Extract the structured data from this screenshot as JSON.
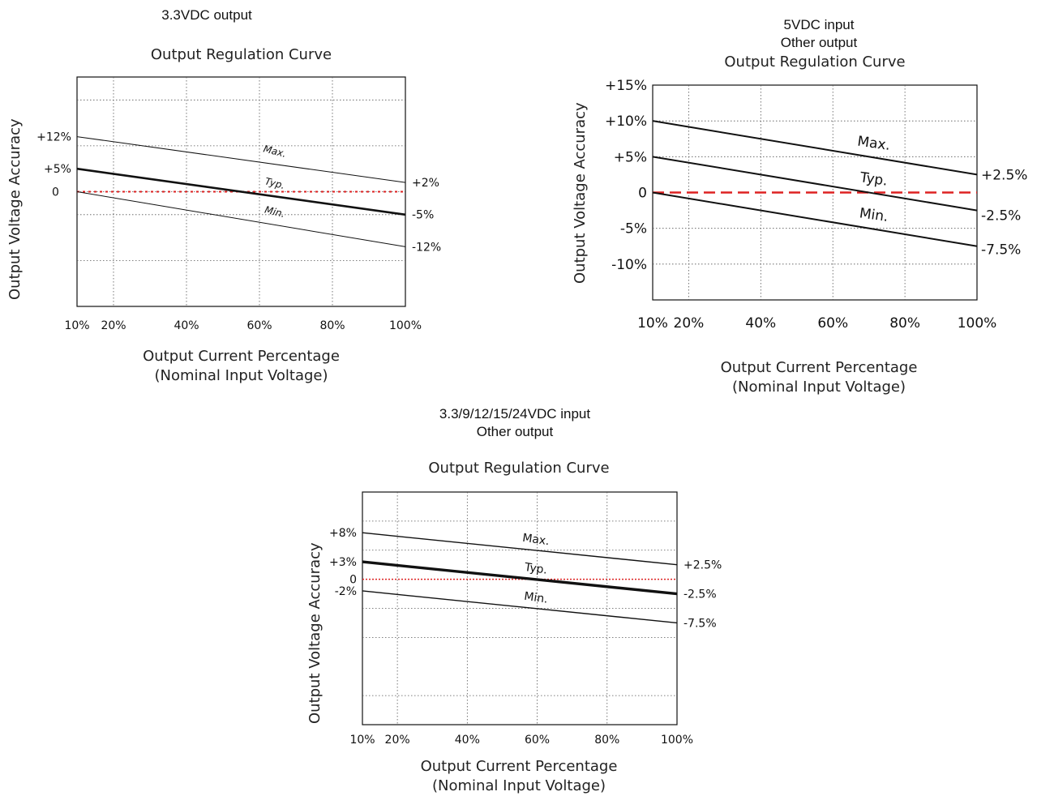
{
  "chart_data": [
    {
      "type": "line",
      "heading": [
        "3.3VDC output"
      ],
      "title": "Output Regulation Curve",
      "xlabel": [
        "Output Current Percentage",
        "(Nominal Input Voltage)"
      ],
      "ylabel": "Output Voltage Accuracy",
      "x_ticks": [
        "10%",
        "20%",
        "40%",
        "60%",
        "80%",
        "100%"
      ],
      "x_tick_values": [
        10,
        20,
        40,
        60,
        80,
        100
      ],
      "xlim": [
        10,
        100
      ],
      "ylim": [
        -25,
        25
      ],
      "y_ticks_left": [
        {
          "label": "+12%",
          "value": 12
        },
        {
          "label": "+5%",
          "value": 5
        },
        {
          "label": "0",
          "value": 0
        }
      ],
      "grid_y": [
        20,
        10,
        0,
        -5,
        -15
      ],
      "zero_line": "dotted-red",
      "series": [
        {
          "name": "Max.",
          "x": [
            10,
            100
          ],
          "y": [
            12,
            2
          ],
          "end_label": "+2%",
          "weight": "thin"
        },
        {
          "name": "Typ.",
          "x": [
            10,
            100
          ],
          "y": [
            5,
            -5
          ],
          "end_label": "-5%",
          "weight": "bold"
        },
        {
          "name": "Min.",
          "x": [
            10,
            100
          ],
          "y": [
            0,
            -12
          ],
          "end_label": "-12%",
          "weight": "thin"
        }
      ]
    },
    {
      "type": "line",
      "heading": [
        "5VDC input",
        "Other output"
      ],
      "title": "Output Regulation Curve",
      "xlabel": [
        "Output Current Percentage",
        "(Nominal Input Voltage)"
      ],
      "ylabel": "Output Voltage Accuracy",
      "x_ticks": [
        "10%",
        "20%",
        "40%",
        "60%",
        "80%",
        "100%"
      ],
      "x_tick_values": [
        10,
        20,
        40,
        60,
        80,
        100
      ],
      "xlim": [
        10,
        100
      ],
      "ylim": [
        -15,
        15
      ],
      "y_ticks_left": [
        {
          "label": "+15%",
          "value": 15
        },
        {
          "label": "+10%",
          "value": 10
        },
        {
          "label": "+5%",
          "value": 5
        },
        {
          "label": "0",
          "value": 0
        },
        {
          "label": "-5%",
          "value": -5
        },
        {
          "label": "-10%",
          "value": -10
        }
      ],
      "grid_y": [
        10,
        5,
        -5,
        -10
      ],
      "zero_line": "dashed-red",
      "series": [
        {
          "name": "Max.",
          "x": [
            10,
            100
          ],
          "y": [
            10,
            2.5
          ],
          "end_label": "+2.5%",
          "weight": "medium"
        },
        {
          "name": "Typ.",
          "x": [
            10,
            100
          ],
          "y": [
            5,
            -2.5
          ],
          "end_label": "-2.5%",
          "weight": "medium"
        },
        {
          "name": "Min.",
          "x": [
            10,
            100
          ],
          "y": [
            0,
            -7.5
          ],
          "end_label": "-7.5%",
          "weight": "medium"
        }
      ]
    },
    {
      "type": "line",
      "heading": [
        "3.3/9/12/15/24VDC input",
        "Other output"
      ],
      "title": "Output Regulation Curve",
      "xlabel": [
        "Output Current Percentage",
        "(Nominal Input Voltage)"
      ],
      "ylabel": "Output Voltage Accuracy",
      "x_ticks": [
        "10%",
        "20%",
        "40%",
        "60%",
        "80%",
        "100%"
      ],
      "x_tick_values": [
        10,
        20,
        40,
        60,
        80,
        100
      ],
      "xlim": [
        10,
        100
      ],
      "ylim": [
        -25,
        15
      ],
      "y_ticks_left": [
        {
          "label": "+8%",
          "value": 8
        },
        {
          "label": "+3%",
          "value": 3
        },
        {
          "label": "0",
          "value": 0
        },
        {
          "label": "-2%",
          "value": -2
        }
      ],
      "grid_y": [
        10,
        5,
        -5,
        -10,
        -20
      ],
      "zero_line": "dotted-red",
      "series": [
        {
          "name": "Max.",
          "x": [
            10,
            100
          ],
          "y": [
            8,
            2.5
          ],
          "end_label": "+2.5%",
          "weight": "thin"
        },
        {
          "name": "Typ.",
          "x": [
            10,
            100
          ],
          "y": [
            3,
            -2.5
          ],
          "end_label": "-2.5%",
          "weight": "bold"
        },
        {
          "name": "Min.",
          "x": [
            10,
            100
          ],
          "y": [
            -2,
            -7.5
          ],
          "end_label": "-7.5%",
          "weight": "thin"
        }
      ]
    }
  ]
}
